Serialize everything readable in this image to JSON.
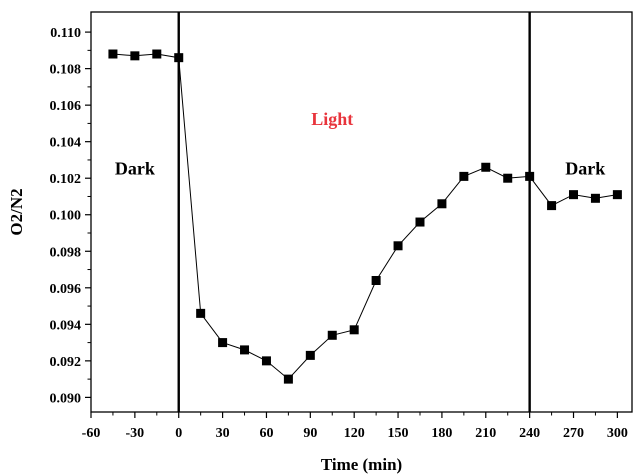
{
  "chart_data": {
    "type": "line",
    "xlabel": "Time (min)",
    "ylabel": "O2/N2",
    "xlim": [
      -60,
      310
    ],
    "ylim": [
      0.0892,
      0.1111
    ],
    "x_ticks": [
      -60,
      -30,
      0,
      30,
      60,
      90,
      120,
      150,
      180,
      210,
      240,
      270,
      300
    ],
    "y_ticks": [
      0.09,
      0.092,
      0.094,
      0.096,
      0.098,
      0.1,
      0.102,
      0.104,
      0.106,
      0.108,
      0.11
    ],
    "x_tick_labels": [
      "-60",
      "-30",
      "0",
      "30",
      "60",
      "90",
      "120",
      "150",
      "180",
      "210",
      "240",
      "270",
      "300"
    ],
    "y_tick_labels": [
      "0.090",
      "0.092",
      "0.094",
      "0.096",
      "0.098",
      "0.100",
      "0.102",
      "0.104",
      "0.106",
      "0.108",
      "0.110"
    ],
    "grid": false,
    "marker": "square",
    "series": [
      {
        "x": [
          -45,
          -30,
          -15,
          0,
          15,
          30,
          45,
          60,
          75,
          90,
          105,
          120,
          135,
          150,
          165,
          180,
          195,
          210,
          225,
          240,
          255,
          270,
          285,
          300
        ],
        "y": [
          0.1088,
          0.1087,
          0.1088,
          0.1086,
          0.0946,
          0.093,
          0.0926,
          0.092,
          0.091,
          0.0923,
          0.0934,
          0.0937,
          0.0964,
          0.0983,
          0.0996,
          0.1006,
          0.1021,
          0.1026,
          0.102,
          0.1021,
          0.1005,
          0.1011,
          0.1009,
          0.1011
        ]
      }
    ],
    "vertical_lines": [
      0,
      240
    ],
    "annotations": [
      {
        "text": "Dark",
        "x": -30,
        "y": 0.1022,
        "color": "#000000"
      },
      {
        "text": "Light",
        "x": 105,
        "y": 0.1049,
        "color": "#e8343c"
      },
      {
        "text": "Dark",
        "x": 278,
        "y": 0.1022,
        "color": "#000000"
      }
    ],
    "colors": {
      "line": "#000000",
      "marker": "#000000"
    }
  }
}
